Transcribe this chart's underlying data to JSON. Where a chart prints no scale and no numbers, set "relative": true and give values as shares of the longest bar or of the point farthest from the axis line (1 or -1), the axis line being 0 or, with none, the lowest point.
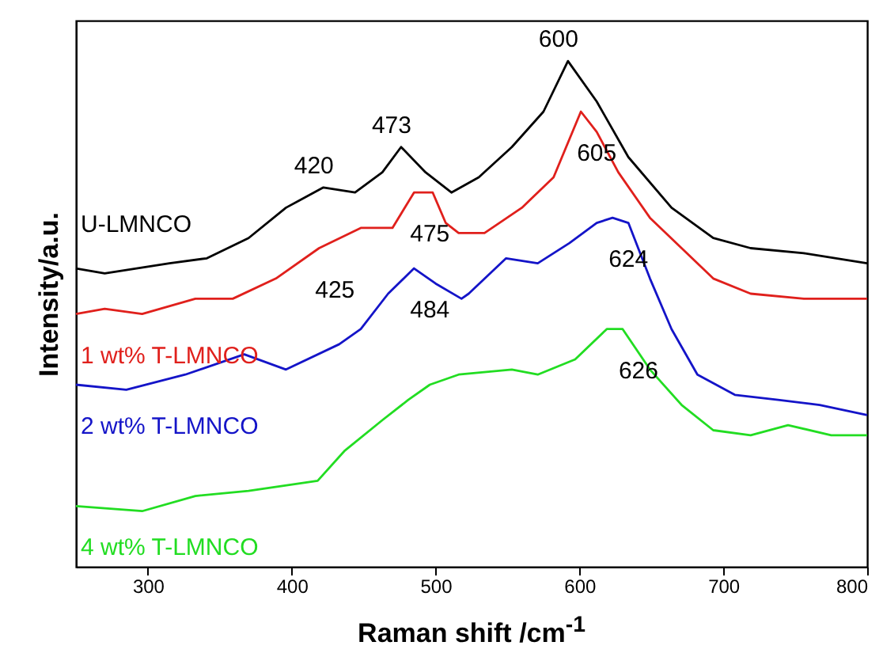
{
  "chart_data": {
    "type": "line",
    "relative": true,
    "xlabel": "Raman shift /cm$^{-1}$",
    "ylabel": "Intensity/a.u.",
    "xlim": [
      250,
      800
    ],
    "xticks": [
      300,
      400,
      500,
      600,
      700,
      800
    ],
    "grid": false,
    "marker": "none",
    "line_style": "solid",
    "series": [
      {
        "name": "U-LMNCO",
        "color": "#000000",
        "x": [
          250,
          270,
          315,
          341,
          370,
          396,
          422,
          444,
          463,
          476,
          493,
          511,
          530,
          553,
          575,
          592,
          612,
          634,
          664,
          693,
          719,
          756,
          800
        ],
        "values": [
          0.59,
          0.58,
          0.6,
          0.61,
          0.65,
          0.71,
          0.75,
          0.74,
          0.78,
          0.83,
          0.78,
          0.74,
          0.77,
          0.83,
          0.9,
          1.0,
          0.92,
          0.81,
          0.71,
          0.65,
          0.63,
          0.62,
          0.6
        ]
      },
      {
        "name": "1 wt% T-LMNCO",
        "color": "#e0201c",
        "x": [
          250,
          270,
          296,
          333,
          359,
          389,
          419,
          448,
          470,
          485,
          498,
          507,
          516,
          534,
          560,
          582,
          601,
          612,
          627,
          649,
          671,
          693,
          719,
          756,
          800
        ],
        "values": [
          0.5,
          0.51,
          0.5,
          0.53,
          0.53,
          0.57,
          0.63,
          0.67,
          0.67,
          0.74,
          0.74,
          0.68,
          0.66,
          0.66,
          0.71,
          0.77,
          0.9,
          0.86,
          0.78,
          0.69,
          0.63,
          0.57,
          0.54,
          0.53,
          0.53
        ]
      },
      {
        "name": "2 wt% T-LMNCO",
        "color": "#1414c8",
        "x": [
          250,
          285,
          326,
          367,
          396,
          433,
          448,
          467,
          485,
          500,
          518,
          523,
          549,
          571,
          593,
          612,
          623,
          634,
          649,
          664,
          682,
          708,
          738,
          767,
          800
        ],
        "values": [
          0.36,
          0.35,
          0.38,
          0.42,
          0.39,
          0.44,
          0.47,
          0.54,
          0.59,
          0.56,
          0.53,
          0.54,
          0.61,
          0.6,
          0.64,
          0.68,
          0.69,
          0.68,
          0.57,
          0.47,
          0.38,
          0.34,
          0.33,
          0.32,
          0.3
        ]
      },
      {
        "name": "4 wt% T-LMNCO",
        "color": "#22dd22",
        "x": [
          250,
          296,
          333,
          370,
          418,
          437,
          463,
          481,
          496,
          516,
          553,
          571,
          597,
          619,
          630,
          649,
          671,
          693,
          719,
          745,
          775,
          800
        ],
        "values": [
          0.12,
          0.11,
          0.14,
          0.15,
          0.17,
          0.23,
          0.29,
          0.33,
          0.36,
          0.38,
          0.39,
          0.38,
          0.41,
          0.47,
          0.47,
          0.39,
          0.32,
          0.27,
          0.26,
          0.28,
          0.26,
          0.26
        ]
      }
    ],
    "annotations": [
      {
        "text": "420",
        "x": 422,
        "y": 0.75
      },
      {
        "text": "473",
        "x": 476,
        "y": 0.83
      },
      {
        "text": "600",
        "x": 592,
        "y": 1.0
      },
      {
        "text": "605",
        "x": 601,
        "y": 0.9
      },
      {
        "text": "425",
        "x": 419,
        "y": 0.63
      },
      {
        "text": "475",
        "x": 485,
        "y": 0.74
      },
      {
        "text": "484",
        "x": 485,
        "y": 0.59
      },
      {
        "text": "624",
        "x": 623,
        "y": 0.69
      },
      {
        "text": "626",
        "x": 630,
        "y": 0.47
      }
    ]
  }
}
